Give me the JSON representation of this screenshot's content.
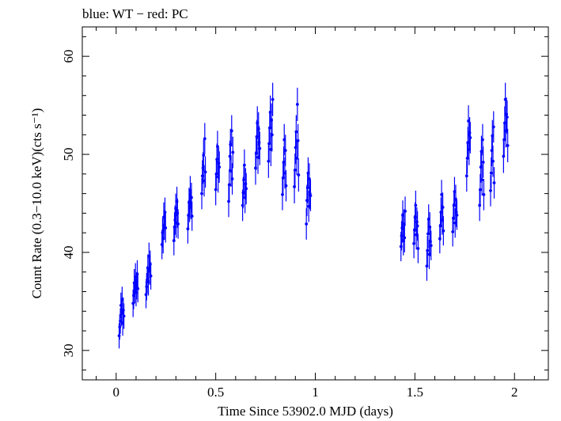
{
  "chart_data": {
    "type": "scatter",
    "title": "blue: WT − red: PC",
    "xlabel": "Time Since 53902.0 MJD (days)",
    "ylabel": "Count Rate (0.3−10.0 keV)(cts s⁻¹)",
    "xlim": [
      -0.17,
      2.17
    ],
    "ylim": [
      27.0,
      63.0
    ],
    "xticks": [
      0,
      0.5,
      1,
      1.5,
      2
    ],
    "xtick_labels": [
      "0",
      "0.5",
      "1",
      "1.5",
      "2"
    ],
    "yticks": [
      30,
      40,
      50,
      60
    ],
    "ytick_labels": [
      "30",
      "40",
      "50",
      "60"
    ],
    "grid": false,
    "color_wt": "#0000ff",
    "series": [
      {
        "name": "WT",
        "color": "#0000ff",
        "x": [
          0.015,
          0.018,
          0.021,
          0.024,
          0.027,
          0.03,
          0.033,
          0.036,
          0.039,
          0.085,
          0.088,
          0.091,
          0.094,
          0.097,
          0.1,
          0.103,
          0.106,
          0.109,
          0.15,
          0.153,
          0.156,
          0.159,
          0.162,
          0.165,
          0.168,
          0.171,
          0.174,
          0.23,
          0.233,
          0.236,
          0.239,
          0.242,
          0.245,
          0.248,
          0.29,
          0.293,
          0.296,
          0.299,
          0.302,
          0.305,
          0.308,
          0.311,
          0.36,
          0.363,
          0.366,
          0.369,
          0.372,
          0.375,
          0.378,
          0.381,
          0.43,
          0.433,
          0.436,
          0.439,
          0.442,
          0.445,
          0.448,
          0.5,
          0.503,
          0.506,
          0.509,
          0.512,
          0.515,
          0.518,
          0.565,
          0.568,
          0.571,
          0.574,
          0.577,
          0.58,
          0.583,
          0.586,
          0.635,
          0.638,
          0.641,
          0.644,
          0.647,
          0.65,
          0.653,
          0.7,
          0.703,
          0.706,
          0.709,
          0.712,
          0.715,
          0.718,
          0.721,
          0.765,
          0.768,
          0.771,
          0.774,
          0.777,
          0.78,
          0.783,
          0.786,
          0.835,
          0.838,
          0.841,
          0.844,
          0.847,
          0.85,
          0.853,
          0.895,
          0.898,
          0.901,
          0.904,
          0.907,
          0.91,
          0.913,
          0.916,
          0.955,
          0.958,
          0.961,
          0.964,
          0.967,
          0.97,
          0.973,
          0.976,
          1.43,
          1.433,
          1.436,
          1.439,
          1.442,
          1.445,
          1.448,
          1.451,
          1.495,
          1.498,
          1.501,
          1.504,
          1.507,
          1.51,
          1.513,
          1.516,
          1.56,
          1.563,
          1.566,
          1.569,
          1.572,
          1.575,
          1.578,
          1.581,
          1.625,
          1.628,
          1.631,
          1.634,
          1.637,
          1.64,
          1.643,
          1.69,
          1.693,
          1.696,
          1.699,
          1.702,
          1.705,
          1.708,
          1.711,
          1.76,
          1.763,
          1.766,
          1.769,
          1.772,
          1.775,
          1.778,
          1.825,
          1.828,
          1.831,
          1.834,
          1.837,
          1.84,
          1.843,
          1.846,
          1.88,
          1.883,
          1.886,
          1.889,
          1.892,
          1.895,
          1.898,
          1.945,
          1.948,
          1.951,
          1.954,
          1.957,
          1.96,
          1.963,
          1.966
        ],
        "y": [
          31.5,
          32.4,
          33.0,
          34.6,
          33.8,
          35.2,
          32.8,
          34.1,
          33.5,
          34.8,
          35.6,
          36.9,
          36.2,
          37.5,
          35.9,
          36.6,
          37.8,
          36.3,
          35.7,
          36.5,
          37.2,
          38.4,
          37.0,
          39.6,
          38.1,
          38.8,
          37.6,
          40.8,
          42.0,
          41.4,
          43.6,
          42.8,
          44.1,
          42.5,
          41.2,
          42.6,
          43.3,
          44.5,
          43.0,
          45.2,
          44.0,
          42.9,
          42.4,
          43.8,
          45.1,
          44.6,
          46.3,
          44.9,
          45.6,
          43.7,
          46.0,
          47.8,
          48.6,
          49.9,
          47.3,
          51.6,
          48.2,
          46.4,
          48.0,
          49.5,
          50.8,
          47.7,
          49.1,
          48.7,
          45.2,
          46.9,
          49.8,
          51.0,
          48.3,
          52.4,
          47.5,
          50.2,
          44.8,
          46.1,
          47.4,
          48.9,
          45.6,
          47.0,
          46.5,
          48.6,
          50.1,
          51.8,
          53.2,
          49.7,
          52.6,
          51.2,
          50.6,
          49.3,
          51.1,
          52.7,
          54.3,
          50.5,
          53.5,
          52.0,
          55.6,
          45.9,
          47.6,
          49.2,
          51.5,
          48.1,
          50.4,
          46.8,
          46.7,
          48.4,
          50.7,
          52.3,
          49.6,
          55.1,
          51.4,
          47.9,
          42.9,
          45.3,
          46.6,
          48.1,
          44.7,
          47.5,
          46.0,
          45.8,
          40.6,
          41.7,
          42.5,
          43.8,
          41.2,
          42.9,
          41.5,
          44.2,
          40.9,
          42.3,
          43.6,
          44.8,
          41.8,
          43.1,
          42.7,
          40.4,
          38.6,
          40.2,
          41.9,
          43.4,
          39.8,
          42.6,
          41.1,
          40.7,
          41.4,
          42.7,
          44.1,
          45.9,
          43.3,
          44.6,
          42.2,
          42.1,
          43.5,
          44.8,
          46.2,
          43.0,
          45.4,
          44.1,
          43.8,
          47.8,
          49.6,
          51.2,
          53.4,
          50.5,
          52.2,
          51.7,
          44.8,
          46.4,
          48.7,
          50.3,
          47.4,
          51.5,
          49.2,
          45.9,
          46.3,
          48.1,
          50.4,
          51.9,
          49.3,
          52.8,
          47.1,
          49.8,
          51.5,
          53.2,
          55.6,
          52.4,
          54.1,
          53.8,
          50.9
        ],
        "yerr": [
          1.3,
          1.3,
          1.3,
          1.3,
          1.3,
          1.3,
          1.3,
          1.3,
          1.3,
          1.4,
          1.4,
          1.4,
          1.4,
          1.4,
          1.4,
          1.4,
          1.4,
          1.4,
          1.4,
          1.4,
          1.4,
          1.4,
          1.4,
          1.4,
          1.4,
          1.4,
          1.4,
          1.5,
          1.5,
          1.5,
          1.5,
          1.5,
          1.5,
          1.5,
          1.5,
          1.5,
          1.5,
          1.5,
          1.5,
          1.5,
          1.5,
          1.5,
          1.5,
          1.5,
          1.5,
          1.5,
          1.5,
          1.5,
          1.5,
          1.5,
          1.6,
          1.6,
          1.6,
          1.6,
          1.6,
          1.6,
          1.6,
          1.6,
          1.6,
          1.6,
          1.6,
          1.6,
          1.6,
          1.6,
          1.6,
          1.6,
          1.6,
          1.6,
          1.6,
          1.6,
          1.6,
          1.6,
          1.6,
          1.6,
          1.6,
          1.6,
          1.6,
          1.6,
          1.6,
          1.7,
          1.7,
          1.7,
          1.7,
          1.7,
          1.7,
          1.7,
          1.7,
          1.7,
          1.7,
          1.7,
          1.7,
          1.7,
          1.7,
          1.7,
          1.7,
          1.6,
          1.6,
          1.6,
          1.6,
          1.6,
          1.6,
          1.6,
          1.7,
          1.7,
          1.7,
          1.7,
          1.7,
          1.7,
          1.7,
          1.7,
          1.6,
          1.6,
          1.6,
          1.6,
          1.6,
          1.6,
          1.6,
          1.6,
          1.5,
          1.5,
          1.5,
          1.5,
          1.5,
          1.5,
          1.5,
          1.5,
          1.5,
          1.5,
          1.5,
          1.5,
          1.5,
          1.5,
          1.5,
          1.5,
          1.5,
          1.5,
          1.5,
          1.5,
          1.5,
          1.5,
          1.5,
          1.5,
          1.5,
          1.5,
          1.5,
          1.5,
          1.5,
          1.5,
          1.5,
          1.5,
          1.5,
          1.5,
          1.5,
          1.5,
          1.5,
          1.5,
          1.5,
          1.6,
          1.6,
          1.6,
          1.6,
          1.6,
          1.6,
          1.6,
          1.6,
          1.6,
          1.6,
          1.6,
          1.6,
          1.6,
          1.6,
          1.6,
          1.6,
          1.6,
          1.6,
          1.6,
          1.6,
          1.6,
          1.6,
          1.7,
          1.7,
          1.7,
          1.7,
          1.7,
          1.7,
          1.7,
          1.7
        ]
      }
    ]
  }
}
